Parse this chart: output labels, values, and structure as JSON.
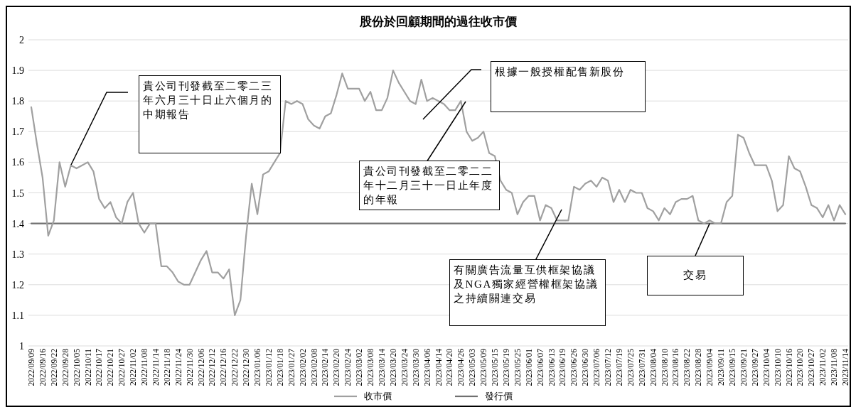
{
  "chart_data": {
    "type": "line",
    "title": "股份於回顧期間的過往收市價",
    "categories": [
      "2022/09/09",
      null,
      "2022/09/16",
      null,
      "2022/09/22",
      null,
      "2022/09/28",
      null,
      "2022/10/05",
      null,
      "2022/10/11",
      null,
      "2022/10/17",
      null,
      "2022/10/21",
      null,
      "2022/10/27",
      null,
      "2022/11/02",
      null,
      "2022/11/08",
      null,
      "2022/11/14",
      null,
      "2022/11/18",
      null,
      "2022/11/24",
      null,
      "2022/11/30",
      null,
      "2022/12/06",
      null,
      "2022/12/12",
      null,
      "2022/12/16",
      null,
      "2022/12/22",
      null,
      "2022/12/30",
      null,
      "2023/01/06",
      null,
      "2023/01/12",
      null,
      "2023/01/18",
      null,
      "2023/01/27",
      null,
      "2023/02/02",
      null,
      "2023/02/08",
      null,
      "2023/02/14",
      null,
      "2023/02/20",
      null,
      "2023/02/24",
      null,
      "2023/03/02",
      null,
      "2023/03/08",
      null,
      "2023/03/14",
      null,
      "2023/03/20",
      null,
      "2023/03/24",
      null,
      "2023/03/30",
      null,
      "2023/04/06",
      null,
      "2023/04/14",
      null,
      "2023/04/20",
      null,
      "2023/04/26",
      null,
      "2023/05/03",
      null,
      "2023/05/09",
      null,
      "2023/05/15",
      null,
      "2023/05/19",
      null,
      "2023/05/25",
      null,
      "2023/06/01",
      null,
      "2023/06/07",
      null,
      "2023/06/13",
      null,
      "2023/06/19",
      null,
      "2023/06/26",
      null,
      "2023/06/30",
      null,
      "2023/07/06",
      null,
      "2023/07/12",
      null,
      "2023/07/19",
      null,
      "2023/07/25",
      null,
      "2023/07/31",
      null,
      "2023/08/04",
      null,
      "2023/08/10",
      null,
      "2023/08/16",
      null,
      "2023/08/22",
      null,
      "2023/08/28",
      null,
      "2023/09/04",
      null,
      "2023/09/11",
      null,
      "2023/09/15",
      null,
      "2023/09/21",
      null,
      "2023/09/27",
      null,
      "2023/10/04",
      null,
      "2023/10/10",
      null,
      "2023/10/16",
      null,
      "2023/10/20",
      null,
      "2023/10/27",
      null,
      "2023/11/02",
      null,
      "2023/11/08",
      null,
      "2023/11/14"
    ],
    "series": [
      {
        "name": "收市價",
        "color": "#a0a0a0",
        "values": [
          1.78,
          1.66,
          1.55,
          1.36,
          1.41,
          1.6,
          1.52,
          1.59,
          1.58,
          1.59,
          1.6,
          1.57,
          1.48,
          1.45,
          1.47,
          1.42,
          1.4,
          1.47,
          1.5,
          1.4,
          1.37,
          1.4,
          1.4,
          1.26,
          1.26,
          1.24,
          1.21,
          1.2,
          1.2,
          1.24,
          1.28,
          1.31,
          1.24,
          1.24,
          1.22,
          1.25,
          1.1,
          1.15,
          1.36,
          1.53,
          1.43,
          1.56,
          1.57,
          1.6,
          1.63,
          1.8,
          1.79,
          1.8,
          1.79,
          1.74,
          1.72,
          1.71,
          1.75,
          1.76,
          1.82,
          1.89,
          1.84,
          1.84,
          1.84,
          1.8,
          1.83,
          1.77,
          1.77,
          1.81,
          1.9,
          1.86,
          1.83,
          1.8,
          1.79,
          1.87,
          1.8,
          1.81,
          1.8,
          1.79,
          1.77,
          1.77,
          1.8,
          1.7,
          1.67,
          1.68,
          1.7,
          1.63,
          1.62,
          1.54,
          1.51,
          1.5,
          1.43,
          1.47,
          1.49,
          1.49,
          1.41,
          1.46,
          1.45,
          1.41,
          1.41,
          1.41,
          1.52,
          1.51,
          1.53,
          1.54,
          1.52,
          1.55,
          1.54,
          1.47,
          1.51,
          1.47,
          1.51,
          1.5,
          1.5,
          1.45,
          1.44,
          1.41,
          1.45,
          1.43,
          1.47,
          1.48,
          1.48,
          1.49,
          1.41,
          1.4,
          1.41,
          1.4,
          1.4,
          1.47,
          1.49,
          1.69,
          1.68,
          1.63,
          1.59,
          1.59,
          1.59,
          1.54,
          1.44,
          1.46,
          1.62,
          1.58,
          1.57,
          1.52,
          1.46,
          1.45,
          1.42,
          1.46,
          1.41,
          1.46,
          1.43
        ]
      },
      {
        "name": "發行價",
        "color": "#707070",
        "values": [
          1.4,
          1.4,
          1.4,
          1.4,
          1.4,
          1.4,
          1.4,
          1.4,
          1.4,
          1.4,
          1.4,
          1.4,
          1.4,
          1.4,
          1.4,
          1.4,
          1.4,
          1.4,
          1.4,
          1.4,
          1.4,
          1.4,
          1.4,
          1.4,
          1.4,
          1.4,
          1.4,
          1.4,
          1.4,
          1.4,
          1.4,
          1.4,
          1.4,
          1.4,
          1.4,
          1.4,
          1.4,
          1.4,
          1.4,
          1.4,
          1.4,
          1.4,
          1.4,
          1.4,
          1.4,
          1.4,
          1.4,
          1.4,
          1.4,
          1.4,
          1.4,
          1.4,
          1.4,
          1.4,
          1.4,
          1.4,
          1.4,
          1.4,
          1.4,
          1.4,
          1.4,
          1.4,
          1.4,
          1.4,
          1.4,
          1.4,
          1.4,
          1.4,
          1.4,
          1.4,
          1.4,
          1.4,
          1.4,
          1.4,
          1.4,
          1.4,
          1.4,
          1.4,
          1.4,
          1.4,
          1.4,
          1.4,
          1.4,
          1.4,
          1.4,
          1.4,
          1.4,
          1.4,
          1.4,
          1.4,
          1.4,
          1.4,
          1.4,
          1.4,
          1.4,
          1.4,
          1.4,
          1.4,
          1.4,
          1.4,
          1.4,
          1.4,
          1.4,
          1.4,
          1.4,
          1.4,
          1.4,
          1.4,
          1.4,
          1.4,
          1.4,
          1.4,
          1.4,
          1.4,
          1.4,
          1.4,
          1.4,
          1.4,
          1.4,
          1.4,
          1.4,
          1.4,
          1.4,
          1.4,
          1.4,
          1.4,
          1.4,
          1.4,
          1.4,
          1.4,
          1.4,
          1.4,
          1.4,
          1.4,
          1.4,
          1.4,
          1.4,
          1.4,
          1.4,
          1.4,
          1.4,
          1.4,
          1.4,
          1.4,
          1.4
        ]
      }
    ],
    "ylim": [
      1,
      2
    ],
    "yticks": [
      1,
      1.1,
      1.2,
      1.3,
      1.4,
      1.5,
      1.6,
      1.7,
      1.8,
      1.9,
      2
    ],
    "grid": "y",
    "legend": "bottom",
    "annotations": [
      "貴公司刊發截至二零二三年六月三十日止六個月的中期報告",
      "貴公司刊發截至二零二二年十二月三十一日止年度的年報",
      "根據一般授權配售新股份",
      "有關廣告流量互供框架協議及NGA獨家經營權框架協議之持續關連交易",
      {
        "text": "交易",
        "x": "2023/09/04",
        "y": 1.4
      }
    ]
  }
}
